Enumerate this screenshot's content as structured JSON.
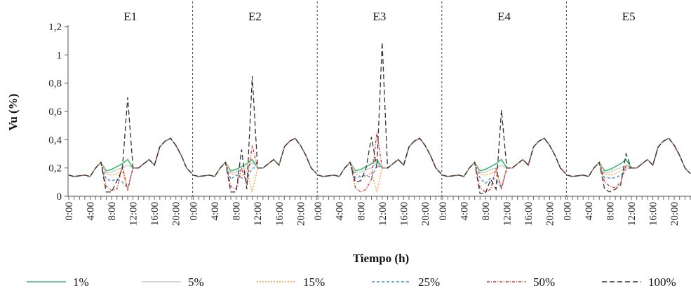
{
  "chart_data": {
    "type": "line",
    "xlabel": "Tiempo (h)",
    "ylabel": "Vu (%)",
    "ylim": [
      0,
      1.2
    ],
    "yticks": [
      "0",
      "0,2",
      "0,4",
      "0,6",
      "0,8",
      "1",
      "1,2"
    ],
    "ytick_values": [
      0,
      0.2,
      0.4,
      0.6,
      0.8,
      1.0,
      1.2
    ],
    "panels": [
      "E1",
      "E2",
      "E3",
      "E4",
      "E5"
    ],
    "hours": [
      0,
      1,
      2,
      3,
      4,
      5,
      6,
      7,
      8,
      9,
      10,
      11,
      12,
      13,
      14,
      15,
      16,
      17,
      18,
      19,
      20,
      21,
      22,
      23
    ],
    "xtick_labels": [
      "0:00",
      "4:00",
      "8:00",
      "12:00",
      "16:00",
      "20:00"
    ],
    "xtick_hours": [
      0,
      4,
      8,
      12,
      16,
      20
    ],
    "legend_position": "bottom",
    "series": [
      {
        "name": "1%",
        "color": "#3dbb72",
        "dash": "",
        "panels": [
          [
            0.15,
            0.14,
            0.145,
            0.15,
            0.14,
            0.2,
            0.24,
            0.18,
            0.19,
            0.21,
            0.23,
            0.26,
            0.2,
            0.2,
            0.23,
            0.26,
            0.22,
            0.35,
            0.39,
            0.41,
            0.36,
            0.29,
            0.2,
            0.16
          ],
          [
            0.15,
            0.14,
            0.145,
            0.15,
            0.14,
            0.2,
            0.24,
            0.18,
            0.19,
            0.21,
            0.23,
            0.26,
            0.2,
            0.2,
            0.23,
            0.26,
            0.22,
            0.35,
            0.39,
            0.41,
            0.36,
            0.29,
            0.2,
            0.16
          ],
          [
            0.15,
            0.14,
            0.145,
            0.15,
            0.14,
            0.2,
            0.24,
            0.18,
            0.19,
            0.21,
            0.23,
            0.26,
            0.2,
            0.2,
            0.23,
            0.26,
            0.22,
            0.35,
            0.39,
            0.41,
            0.36,
            0.29,
            0.2,
            0.16
          ],
          [
            0.15,
            0.14,
            0.145,
            0.15,
            0.14,
            0.2,
            0.24,
            0.18,
            0.19,
            0.21,
            0.23,
            0.26,
            0.2,
            0.2,
            0.23,
            0.26,
            0.22,
            0.35,
            0.39,
            0.41,
            0.36,
            0.29,
            0.2,
            0.16
          ],
          [
            0.15,
            0.14,
            0.145,
            0.15,
            0.14,
            0.2,
            0.24,
            0.18,
            0.19,
            0.21,
            0.23,
            0.26,
            0.2,
            0.2,
            0.23,
            0.26,
            0.22,
            0.35,
            0.39,
            0.41,
            0.36,
            0.29,
            0.2,
            0.16
          ]
        ]
      },
      {
        "name": "5%",
        "color": "#c8c8c8",
        "dash": "",
        "panels": [
          [
            0.15,
            0.14,
            0.145,
            0.15,
            0.14,
            0.2,
            0.24,
            0.17,
            0.17,
            0.19,
            0.2,
            0.22,
            0.2,
            0.2,
            0.23,
            0.26,
            0.22,
            0.35,
            0.39,
            0.41,
            0.36,
            0.29,
            0.2,
            0.16
          ],
          [
            0.15,
            0.14,
            0.145,
            0.15,
            0.14,
            0.2,
            0.24,
            0.17,
            0.17,
            0.19,
            0.2,
            0.24,
            0.2,
            0.2,
            0.23,
            0.26,
            0.22,
            0.35,
            0.39,
            0.41,
            0.36,
            0.29,
            0.2,
            0.16
          ],
          [
            0.15,
            0.14,
            0.145,
            0.15,
            0.14,
            0.2,
            0.24,
            0.17,
            0.17,
            0.19,
            0.2,
            0.24,
            0.2,
            0.2,
            0.23,
            0.26,
            0.22,
            0.35,
            0.39,
            0.41,
            0.36,
            0.29,
            0.2,
            0.16
          ],
          [
            0.15,
            0.14,
            0.145,
            0.15,
            0.14,
            0.2,
            0.24,
            0.17,
            0.17,
            0.19,
            0.2,
            0.22,
            0.2,
            0.2,
            0.23,
            0.26,
            0.22,
            0.35,
            0.39,
            0.41,
            0.36,
            0.29,
            0.2,
            0.16
          ],
          [
            0.15,
            0.14,
            0.145,
            0.15,
            0.14,
            0.2,
            0.24,
            0.17,
            0.17,
            0.19,
            0.2,
            0.22,
            0.2,
            0.2,
            0.23,
            0.26,
            0.22,
            0.35,
            0.39,
            0.41,
            0.36,
            0.29,
            0.2,
            0.16
          ]
        ]
      },
      {
        "name": "15%",
        "color": "#f0a030",
        "dash": "2,2",
        "panels": [
          [
            0.15,
            0.14,
            0.145,
            0.15,
            0.14,
            0.2,
            0.24,
            0.16,
            0.15,
            0.16,
            0.18,
            0.05,
            0.2,
            0.2,
            0.23,
            0.26,
            0.22,
            0.35,
            0.39,
            0.41,
            0.36,
            0.29,
            0.2,
            0.16
          ],
          [
            0.15,
            0.14,
            0.145,
            0.15,
            0.14,
            0.2,
            0.24,
            0.16,
            0.15,
            0.14,
            0.18,
            0.03,
            0.2,
            0.2,
            0.23,
            0.26,
            0.22,
            0.35,
            0.39,
            0.41,
            0.36,
            0.29,
            0.2,
            0.16
          ],
          [
            0.15,
            0.14,
            0.145,
            0.15,
            0.14,
            0.2,
            0.24,
            0.16,
            0.14,
            0.14,
            0.17,
            0.03,
            0.2,
            0.2,
            0.23,
            0.26,
            0.22,
            0.35,
            0.39,
            0.41,
            0.36,
            0.29,
            0.2,
            0.16
          ],
          [
            0.15,
            0.14,
            0.145,
            0.15,
            0.14,
            0.2,
            0.24,
            0.16,
            0.15,
            0.16,
            0.18,
            0.06,
            0.2,
            0.2,
            0.23,
            0.26,
            0.22,
            0.35,
            0.39,
            0.41,
            0.36,
            0.29,
            0.2,
            0.16
          ],
          [
            0.15,
            0.14,
            0.145,
            0.15,
            0.14,
            0.2,
            0.24,
            0.16,
            0.15,
            0.16,
            0.18,
            0.2,
            0.2,
            0.2,
            0.23,
            0.26,
            0.22,
            0.35,
            0.39,
            0.41,
            0.36,
            0.29,
            0.2,
            0.16
          ]
        ]
      },
      {
        "name": "25%",
        "color": "#3a8fd8",
        "dash": "4,3",
        "panels": [
          [
            0.15,
            0.14,
            0.145,
            0.15,
            0.14,
            0.2,
            0.24,
            0.12,
            0.11,
            0.12,
            0.1,
            0.06,
            0.2,
            0.2,
            0.23,
            0.26,
            0.22,
            0.35,
            0.39,
            0.41,
            0.36,
            0.29,
            0.2,
            0.16
          ],
          [
            0.15,
            0.14,
            0.145,
            0.15,
            0.14,
            0.2,
            0.24,
            0.12,
            0.15,
            0.13,
            0.12,
            0.2,
            0.2,
            0.2,
            0.23,
            0.26,
            0.22,
            0.35,
            0.39,
            0.41,
            0.36,
            0.29,
            0.2,
            0.16
          ],
          [
            0.15,
            0.14,
            0.145,
            0.15,
            0.14,
            0.2,
            0.24,
            0.13,
            0.14,
            0.15,
            0.13,
            0.22,
            0.2,
            0.2,
            0.23,
            0.26,
            0.22,
            0.35,
            0.39,
            0.41,
            0.36,
            0.29,
            0.2,
            0.16
          ],
          [
            0.15,
            0.14,
            0.145,
            0.15,
            0.14,
            0.2,
            0.24,
            0.13,
            0.09,
            0.13,
            0.12,
            0.06,
            0.2,
            0.2,
            0.23,
            0.26,
            0.22,
            0.35,
            0.39,
            0.41,
            0.36,
            0.29,
            0.2,
            0.16
          ],
          [
            0.15,
            0.14,
            0.145,
            0.15,
            0.14,
            0.2,
            0.24,
            0.13,
            0.13,
            0.13,
            0.15,
            0.19,
            0.2,
            0.2,
            0.23,
            0.26,
            0.22,
            0.35,
            0.39,
            0.41,
            0.36,
            0.29,
            0.2,
            0.16
          ]
        ]
      },
      {
        "name": "50%",
        "color": "#e03030",
        "dash": "4,2,1,2",
        "panels": [
          [
            0.15,
            0.14,
            0.145,
            0.15,
            0.14,
            0.2,
            0.24,
            0.07,
            0.04,
            0.05,
            0.22,
            0.04,
            0.2,
            0.2,
            0.23,
            0.26,
            0.22,
            0.35,
            0.39,
            0.41,
            0.36,
            0.29,
            0.2,
            0.16
          ],
          [
            0.15,
            0.14,
            0.145,
            0.15,
            0.14,
            0.2,
            0.24,
            0.07,
            0.05,
            0.2,
            0.09,
            0.36,
            0.2,
            0.2,
            0.23,
            0.26,
            0.22,
            0.35,
            0.39,
            0.41,
            0.36,
            0.29,
            0.2,
            0.16
          ],
          [
            0.15,
            0.14,
            0.145,
            0.15,
            0.14,
            0.2,
            0.24,
            0.06,
            0.03,
            0.05,
            0.12,
            0.45,
            0.2,
            0.2,
            0.23,
            0.26,
            0.22,
            0.35,
            0.39,
            0.41,
            0.36,
            0.29,
            0.2,
            0.16
          ],
          [
            0.15,
            0.14,
            0.145,
            0.15,
            0.14,
            0.2,
            0.24,
            0.06,
            0.03,
            0.05,
            0.2,
            0.05,
            0.2,
            0.2,
            0.23,
            0.26,
            0.22,
            0.35,
            0.39,
            0.41,
            0.36,
            0.29,
            0.2,
            0.16
          ],
          [
            0.15,
            0.14,
            0.145,
            0.15,
            0.14,
            0.2,
            0.24,
            0.1,
            0.07,
            0.06,
            0.1,
            0.22,
            0.2,
            0.2,
            0.23,
            0.26,
            0.22,
            0.35,
            0.39,
            0.41,
            0.36,
            0.29,
            0.2,
            0.16
          ]
        ]
      },
      {
        "name": "100%",
        "color": "#333333",
        "dash": "7,4",
        "panels": [
          [
            0.15,
            0.14,
            0.145,
            0.15,
            0.14,
            0.2,
            0.24,
            0.03,
            0.03,
            0.11,
            0.19,
            0.7,
            0.2,
            0.2,
            0.23,
            0.26,
            0.22,
            0.35,
            0.39,
            0.41,
            0.36,
            0.29,
            0.2,
            0.16
          ],
          [
            0.15,
            0.14,
            0.145,
            0.15,
            0.14,
            0.2,
            0.24,
            0.03,
            0.03,
            0.33,
            0.05,
            0.85,
            0.2,
            0.2,
            0.23,
            0.26,
            0.22,
            0.35,
            0.39,
            0.41,
            0.36,
            0.29,
            0.2,
            0.16
          ],
          [
            0.15,
            0.14,
            0.145,
            0.15,
            0.14,
            0.2,
            0.24,
            0.1,
            0.11,
            0.2,
            0.42,
            0.2,
            1.09,
            0.2,
            0.23,
            0.26,
            0.22,
            0.35,
            0.39,
            0.41,
            0.36,
            0.29,
            0.2,
            0.16
          ],
          [
            0.15,
            0.14,
            0.145,
            0.15,
            0.14,
            0.2,
            0.24,
            0.02,
            0.02,
            0.12,
            0.05,
            0.61,
            0.2,
            0.2,
            0.23,
            0.26,
            0.22,
            0.35,
            0.39,
            0.41,
            0.36,
            0.29,
            0.2,
            0.16
          ],
          [
            0.15,
            0.14,
            0.145,
            0.15,
            0.14,
            0.2,
            0.24,
            0.05,
            0.03,
            0.05,
            0.08,
            0.3,
            0.2,
            0.2,
            0.23,
            0.26,
            0.22,
            0.35,
            0.39,
            0.41,
            0.36,
            0.29,
            0.2,
            0.16
          ]
        ]
      }
    ]
  }
}
